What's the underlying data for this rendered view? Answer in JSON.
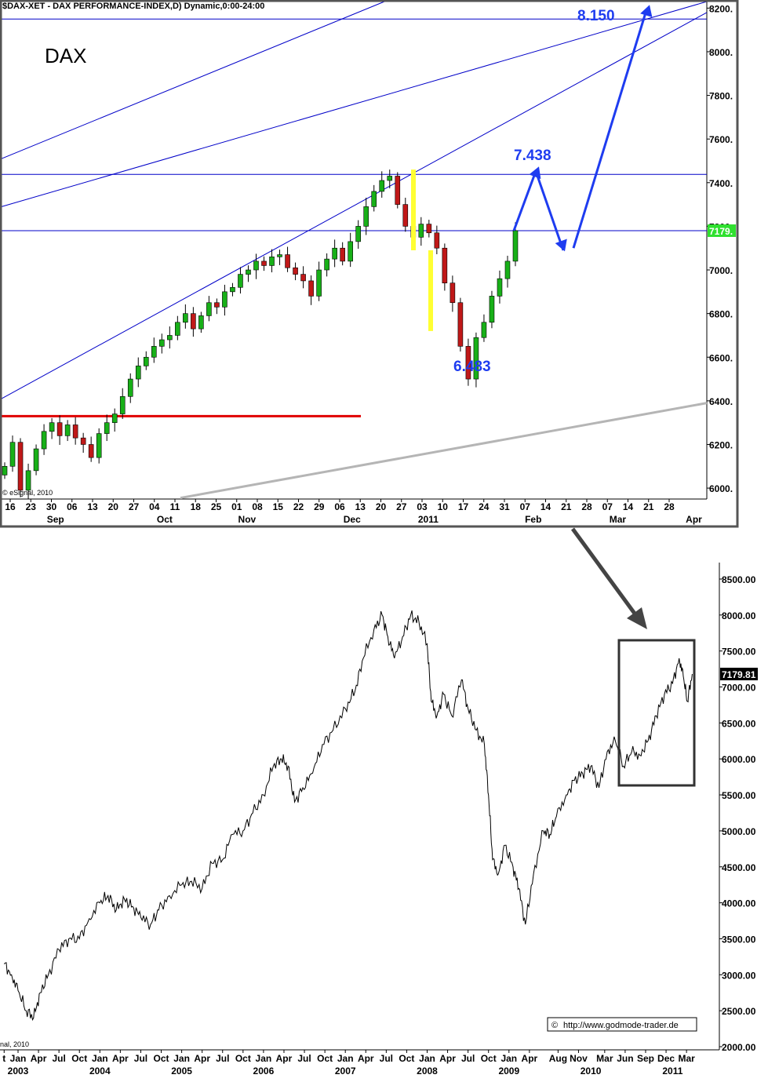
{
  "chart_data": [
    {
      "type": "candlestick",
      "header": "$DAX-XET - DAX PERFORMANCE-INDEX,D) Dynamic,0:00-24:00",
      "symbol_label": "DAX",
      "watermark": "© eSignal, 2010",
      "ylim": [
        5950,
        8230
      ],
      "y_ticks": [
        {
          "v": 6000,
          "label": "6000."
        },
        {
          "v": 6200,
          "label": "6200."
        },
        {
          "v": 6400,
          "label": "6400."
        },
        {
          "v": 6600,
          "label": "6600."
        },
        {
          "v": 6800,
          "label": "6800."
        },
        {
          "v": 7000,
          "label": "7000."
        },
        {
          "v": 7200,
          "label": "7200."
        },
        {
          "v": 7400,
          "label": "7400."
        },
        {
          "v": 7600,
          "label": "7600."
        },
        {
          "v": 7800,
          "label": "7800."
        },
        {
          "v": 8000,
          "label": "8000."
        },
        {
          "v": 8200,
          "label": "8200."
        }
      ],
      "current_price_label": "7179.",
      "current_price": 7180,
      "day_ticks": [
        "16",
        "23",
        "30",
        "06",
        "13",
        "20",
        "27",
        "04",
        "11",
        "18",
        "25",
        "01",
        "08",
        "15",
        "22",
        "29",
        "06",
        "13",
        "20",
        "27",
        "03",
        "10",
        "17",
        "24",
        "31",
        "07",
        "14",
        "21",
        "28",
        "07",
        "14",
        "21",
        "28"
      ],
      "month_labels": [
        {
          "label": "Sep",
          "day_index": 2.2
        },
        {
          "label": "Oct",
          "day_index": 7.5
        },
        {
          "label": "Nov",
          "day_index": 11.5
        },
        {
          "label": "Dec",
          "day_index": 16.6
        },
        {
          "label": "2011",
          "day_index": 20.3
        },
        {
          "label": "Feb",
          "day_index": 25.4
        },
        {
          "label": "Mar",
          "day_index": 29.5
        },
        {
          "label": "Apr",
          "day_index": 33.2
        }
      ],
      "closes": [
        6100,
        6210,
        5990,
        6080,
        6180,
        6260,
        6300,
        6240,
        6290,
        6230,
        6200,
        6140,
        6250,
        6300,
        6340,
        6420,
        6500,
        6560,
        6600,
        6650,
        6680,
        6700,
        6760,
        6800,
        6730,
        6790,
        6850,
        6830,
        6900,
        6920,
        6980,
        7000,
        7040,
        7020,
        7060,
        7070,
        7010,
        6980,
        6950,
        6880,
        7000,
        7050,
        7100,
        7040,
        7130,
        7200,
        7290,
        7360,
        7410,
        7430,
        7300,
        7200,
        7150,
        7210,
        7170,
        7100,
        6940,
        6850,
        6650,
        6500,
        6690,
        6760,
        6880,
        6960,
        7040,
        7180
      ],
      "annotations": [
        {
          "label": "7.438",
          "value": 7438
        },
        {
          "label": "8.150",
          "value": 8150
        },
        {
          "label": "6.483",
          "value": 6483
        }
      ],
      "horizontal_levels": [
        7438,
        7180,
        8150
      ],
      "support_level": 6330
    },
    {
      "type": "line",
      "ylim": [
        2000,
        8700
      ],
      "y_ticks": [
        {
          "v": 2000,
          "label": "2000.00"
        },
        {
          "v": 2500,
          "label": "2500.00"
        },
        {
          "v": 3000,
          "label": "3000.00"
        },
        {
          "v": 3500,
          "label": "3500.00"
        },
        {
          "v": 4000,
          "label": "4000.00"
        },
        {
          "v": 4500,
          "label": "4500.00"
        },
        {
          "v": 5000,
          "label": "5000.00"
        },
        {
          "v": 5500,
          "label": "5500.00"
        },
        {
          "v": 6000,
          "label": "6000.00"
        },
        {
          "v": 6500,
          "label": "6500.00"
        },
        {
          "v": 7000,
          "label": "7000.00"
        },
        {
          "v": 7500,
          "label": "7500.00"
        },
        {
          "v": 8000,
          "label": "8000.00"
        },
        {
          "v": 8500,
          "label": "8500.00"
        }
      ],
      "last_value_label": "7179.81",
      "last_value": 7180,
      "x_ticks": [
        {
          "label": "t",
          "t": 2002.83
        },
        {
          "label": "Jan",
          "t": 2003.0
        },
        {
          "label": "Apr",
          "t": 2003.25
        },
        {
          "label": "Jul",
          "t": 2003.5
        },
        {
          "label": "Oct",
          "t": 2003.75
        },
        {
          "label": "Jan",
          "t": 2004.0
        },
        {
          "label": "Apr",
          "t": 2004.25
        },
        {
          "label": "Jul",
          "t": 2004.5
        },
        {
          "label": "Oct",
          "t": 2004.75
        },
        {
          "label": "Jan",
          "t": 2005.0
        },
        {
          "label": "Apr",
          "t": 2005.25
        },
        {
          "label": "Jul",
          "t": 2005.5
        },
        {
          "label": "Oct",
          "t": 2005.75
        },
        {
          "label": "Jan",
          "t": 2006.0
        },
        {
          "label": "Apr",
          "t": 2006.25
        },
        {
          "label": "Jul",
          "t": 2006.5
        },
        {
          "label": "Oct",
          "t": 2006.75
        },
        {
          "label": "Jan",
          "t": 2007.0
        },
        {
          "label": "Apr",
          "t": 2007.25
        },
        {
          "label": "Jul",
          "t": 2007.5
        },
        {
          "label": "Oct",
          "t": 2007.75
        },
        {
          "label": "Jan",
          "t": 2008.0
        },
        {
          "label": "Apr",
          "t": 2008.25
        },
        {
          "label": "Jul",
          "t": 2008.5
        },
        {
          "label": "Oct",
          "t": 2008.75
        },
        {
          "label": "Jan",
          "t": 2009.0
        },
        {
          "label": "Apr",
          "t": 2009.25
        },
        {
          "label": "Aug",
          "t": 2009.6
        },
        {
          "label": "Nov",
          "t": 2009.85
        },
        {
          "label": "Mar",
          "t": 2010.17
        },
        {
          "label": "Jun",
          "t": 2010.42
        },
        {
          "label": "Sep",
          "t": 2010.67
        },
        {
          "label": "Dec",
          "t": 2010.92
        },
        {
          "label": "Mar",
          "t": 2011.17
        }
      ],
      "year_labels": [
        {
          "label": "2003",
          "t": 2003.0
        },
        {
          "label": "2004",
          "t": 2004.0
        },
        {
          "label": "2005",
          "t": 2005.0
        },
        {
          "label": "2006",
          "t": 2006.0
        },
        {
          "label": "2007",
          "t": 2007.0
        },
        {
          "label": "2008",
          "t": 2008.0
        },
        {
          "label": "2009",
          "t": 2009.0
        },
        {
          "label": "2010",
          "t": 2010.0
        },
        {
          "label": "2011",
          "t": 2011.0
        }
      ],
      "watermark": "nal, 2010",
      "source_label": "http://www.godmode-trader.de",
      "points": [
        [
          2002.83,
          3150
        ],
        [
          2002.92,
          3000
        ],
        [
          2003.0,
          2780
        ],
        [
          2003.1,
          2500
        ],
        [
          2003.19,
          2400
        ],
        [
          2003.27,
          2750
        ],
        [
          2003.37,
          3000
        ],
        [
          2003.5,
          3350
        ],
        [
          2003.62,
          3500
        ],
        [
          2003.75,
          3500
        ],
        [
          2003.87,
          3780
        ],
        [
          2004.0,
          4000
        ],
        [
          2004.1,
          4100
        ],
        [
          2004.2,
          3900
        ],
        [
          2004.3,
          4050
        ],
        [
          2004.4,
          3950
        ],
        [
          2004.5,
          3800
        ],
        [
          2004.62,
          3700
        ],
        [
          2004.72,
          3900
        ],
        [
          2004.85,
          4100
        ],
        [
          2005.0,
          4250
        ],
        [
          2005.12,
          4300
        ],
        [
          2005.25,
          4200
        ],
        [
          2005.37,
          4550
        ],
        [
          2005.5,
          4600
        ],
        [
          2005.62,
          4950
        ],
        [
          2005.75,
          5000
        ],
        [
          2005.87,
          5250
        ],
        [
          2006.0,
          5500
        ],
        [
          2006.12,
          5900
        ],
        [
          2006.22,
          6000
        ],
        [
          2006.3,
          5900
        ],
        [
          2006.38,
          5400
        ],
        [
          2006.48,
          5600
        ],
        [
          2006.6,
          5800
        ],
        [
          2006.72,
          6200
        ],
        [
          2006.85,
          6400
        ],
        [
          2007.0,
          6700
        ],
        [
          2007.12,
          6950
        ],
        [
          2007.22,
          7400
        ],
        [
          2007.35,
          7800
        ],
        [
          2007.45,
          8000
        ],
        [
          2007.52,
          7700
        ],
        [
          2007.6,
          7400
        ],
        [
          2007.7,
          7700
        ],
        [
          2007.8,
          8000
        ],
        [
          2007.9,
          7900
        ],
        [
          2008.0,
          7600
        ],
        [
          2008.05,
          6800
        ],
        [
          2008.12,
          6600
        ],
        [
          2008.2,
          6900
        ],
        [
          2008.3,
          6600
        ],
        [
          2008.42,
          7100
        ],
        [
          2008.5,
          6700
        ],
        [
          2008.6,
          6400
        ],
        [
          2008.7,
          6200
        ],
        [
          2008.75,
          5500
        ],
        [
          2008.8,
          4600
        ],
        [
          2008.87,
          4400
        ],
        [
          2008.95,
          4800
        ],
        [
          2009.05,
          4500
        ],
        [
          2009.12,
          4200
        ],
        [
          2009.2,
          3700
        ],
        [
          2009.3,
          4400
        ],
        [
          2009.42,
          5000
        ],
        [
          2009.5,
          4950
        ],
        [
          2009.58,
          5200
        ],
        [
          2009.7,
          5500
        ],
        [
          2009.8,
          5700
        ],
        [
          2009.9,
          5800
        ],
        [
          2010.0,
          5900
        ],
        [
          2010.1,
          5600
        ],
        [
          2010.2,
          6100
        ],
        [
          2010.3,
          6250
        ],
        [
          2010.4,
          5900
        ],
        [
          2010.5,
          6100
        ],
        [
          2010.6,
          6050
        ],
        [
          2010.7,
          6250
        ],
        [
          2010.8,
          6600
        ],
        [
          2010.9,
          6900
        ],
        [
          2011.0,
          7050
        ],
        [
          2011.08,
          7400
        ],
        [
          2011.13,
          7150
        ],
        [
          2011.18,
          6800
        ],
        [
          2011.24,
          7180
        ]
      ]
    }
  ]
}
